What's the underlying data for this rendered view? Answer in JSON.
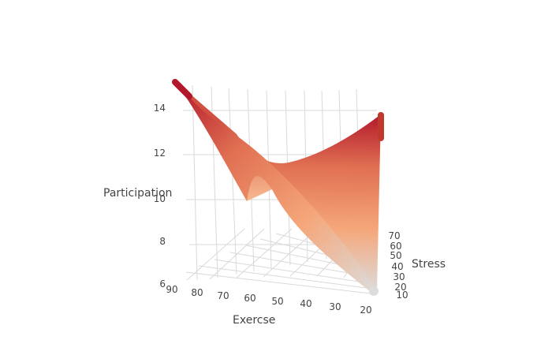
{
  "chart_data": {
    "type": "surface",
    "axes": {
      "x": {
        "label": "Exercse",
        "range": [
          20,
          90
        ],
        "ticks": [
          "90",
          "80",
          "70",
          "60",
          "50",
          "40",
          "30",
          "20"
        ]
      },
      "y": {
        "label": "Stress",
        "range": [
          10,
          70
        ],
        "ticks": [
          "70",
          "60",
          "50",
          "40",
          "30",
          "20",
          "10"
        ]
      },
      "z": {
        "label": "Participation",
        "range": [
          6,
          15
        ],
        "ticks": [
          "14",
          "12",
          "10",
          "8",
          "6"
        ]
      }
    },
    "surface_corners": [
      {
        "exercise": 90,
        "stress": 10,
        "participation": 15
      },
      {
        "exercise": 90,
        "stress": 70,
        "participation": 10
      },
      {
        "exercise": 20,
        "stress": 10,
        "participation": 6
      },
      {
        "exercise": 20,
        "stress": 70,
        "participation": 14
      }
    ],
    "colorscale": [
      "#dcdcdc",
      "#f5a77a",
      "#e07052",
      "#b2182b"
    ],
    "grid": true,
    "legend": "none"
  }
}
